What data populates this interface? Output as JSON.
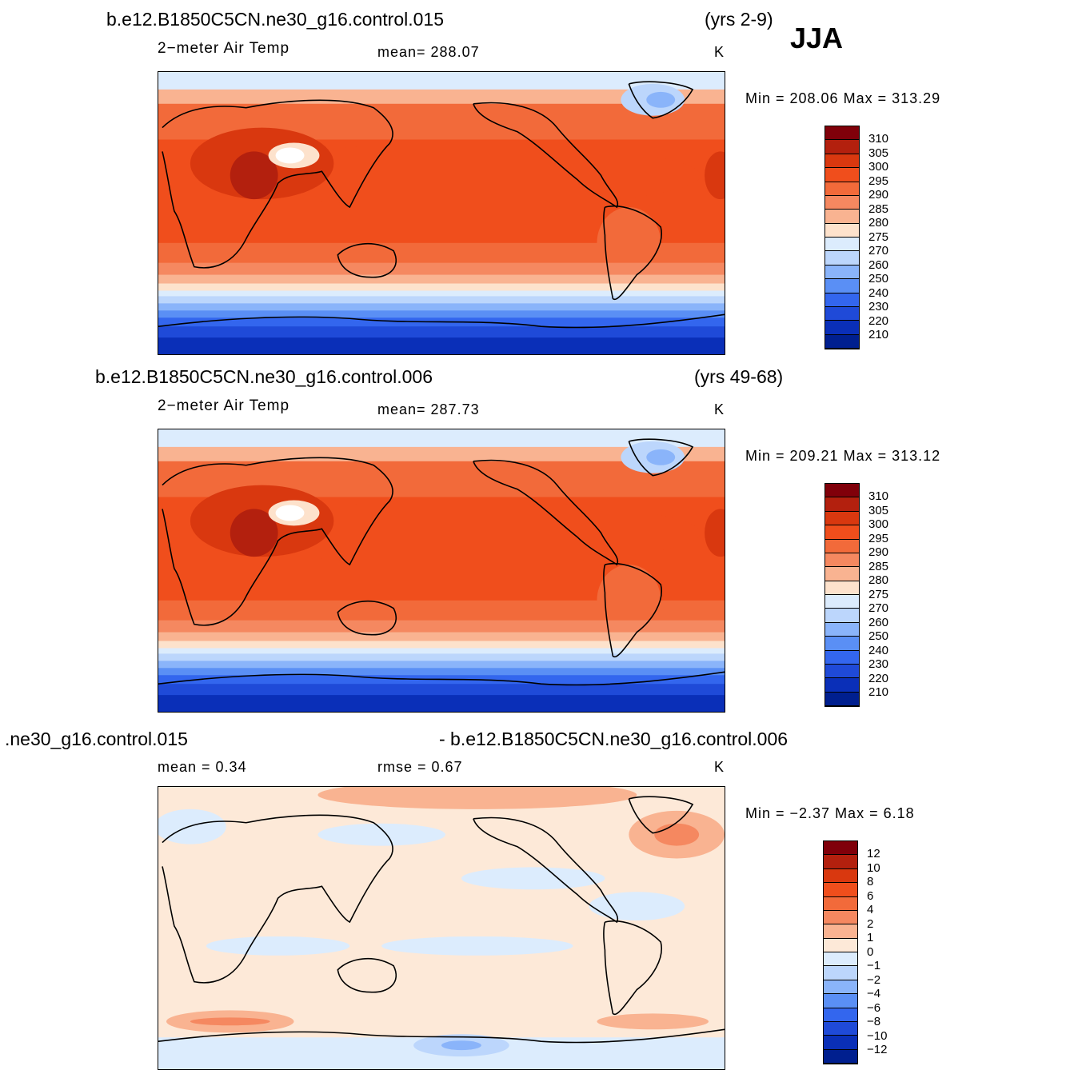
{
  "season": "JJA",
  "panels": [
    {
      "case": "b.e12.B1850C5CN.ne30_g16.control.015",
      "years": "(yrs 2-9)",
      "variable": "2−meter Air Temp",
      "mean_text": "mean=  288.07",
      "units": "K",
      "minmax": "Min  =  208.06  Max  =  313.29",
      "colorbar_labels": [
        "310",
        "305",
        "300",
        "295",
        "290",
        "285",
        "280",
        "275",
        "270",
        "260",
        "250",
        "240",
        "230",
        "220",
        "210"
      ]
    },
    {
      "case": "b.e12.B1850C5CN.ne30_g16.control.006",
      "years": "(yrs 49-68)",
      "variable": "2−meter Air Temp",
      "mean_text": "mean=  287.73",
      "units": "K",
      "minmax": "Min  =  209.21  Max  =  313.12",
      "colorbar_labels": [
        "310",
        "305",
        "300",
        "295",
        "290",
        "285",
        "280",
        "275",
        "270",
        "260",
        "250",
        "240",
        "230",
        "220",
        "210"
      ]
    },
    {
      "case_left": ".ne30_g16.control.015",
      "case_right": "- b.e12.B1850C5CN.ne30_g16.control.006",
      "mean_text": "mean  =     0.34",
      "rmse_text": "rmse  =     0.67",
      "units": "K",
      "minmax": "Min  =     −2.37  Max  =       6.18",
      "colorbar_labels": [
        "12",
        "10",
        "8",
        "6",
        "4",
        "2",
        "1",
        "0",
        "−1",
        "−2",
        "−4",
        "−6",
        "−8",
        "−10",
        "−12"
      ]
    }
  ],
  "colors": {
    "abs_scale": [
      "#80000a",
      "#b3200e",
      "#d9380f",
      "#f04e1c",
      "#f26a3a",
      "#f58860",
      "#f9b391",
      "#fde2cc",
      "#dcecfd",
      "#bcd6fc",
      "#8ab4fa",
      "#5a8ff5",
      "#3366ee",
      "#1f4ad8",
      "#0a2fb8",
      "#001f8f"
    ],
    "diff_scale": [
      "#80000a",
      "#b3200e",
      "#d9380f",
      "#f04e1c",
      "#f26a3a",
      "#f58860",
      "#f9b391",
      "#fde9d8",
      "#dcecfd",
      "#bcd6fc",
      "#8ab4fa",
      "#5a8ff5",
      "#3366ee",
      "#1f4ad8",
      "#0a2fb8",
      "#001f8f"
    ]
  }
}
